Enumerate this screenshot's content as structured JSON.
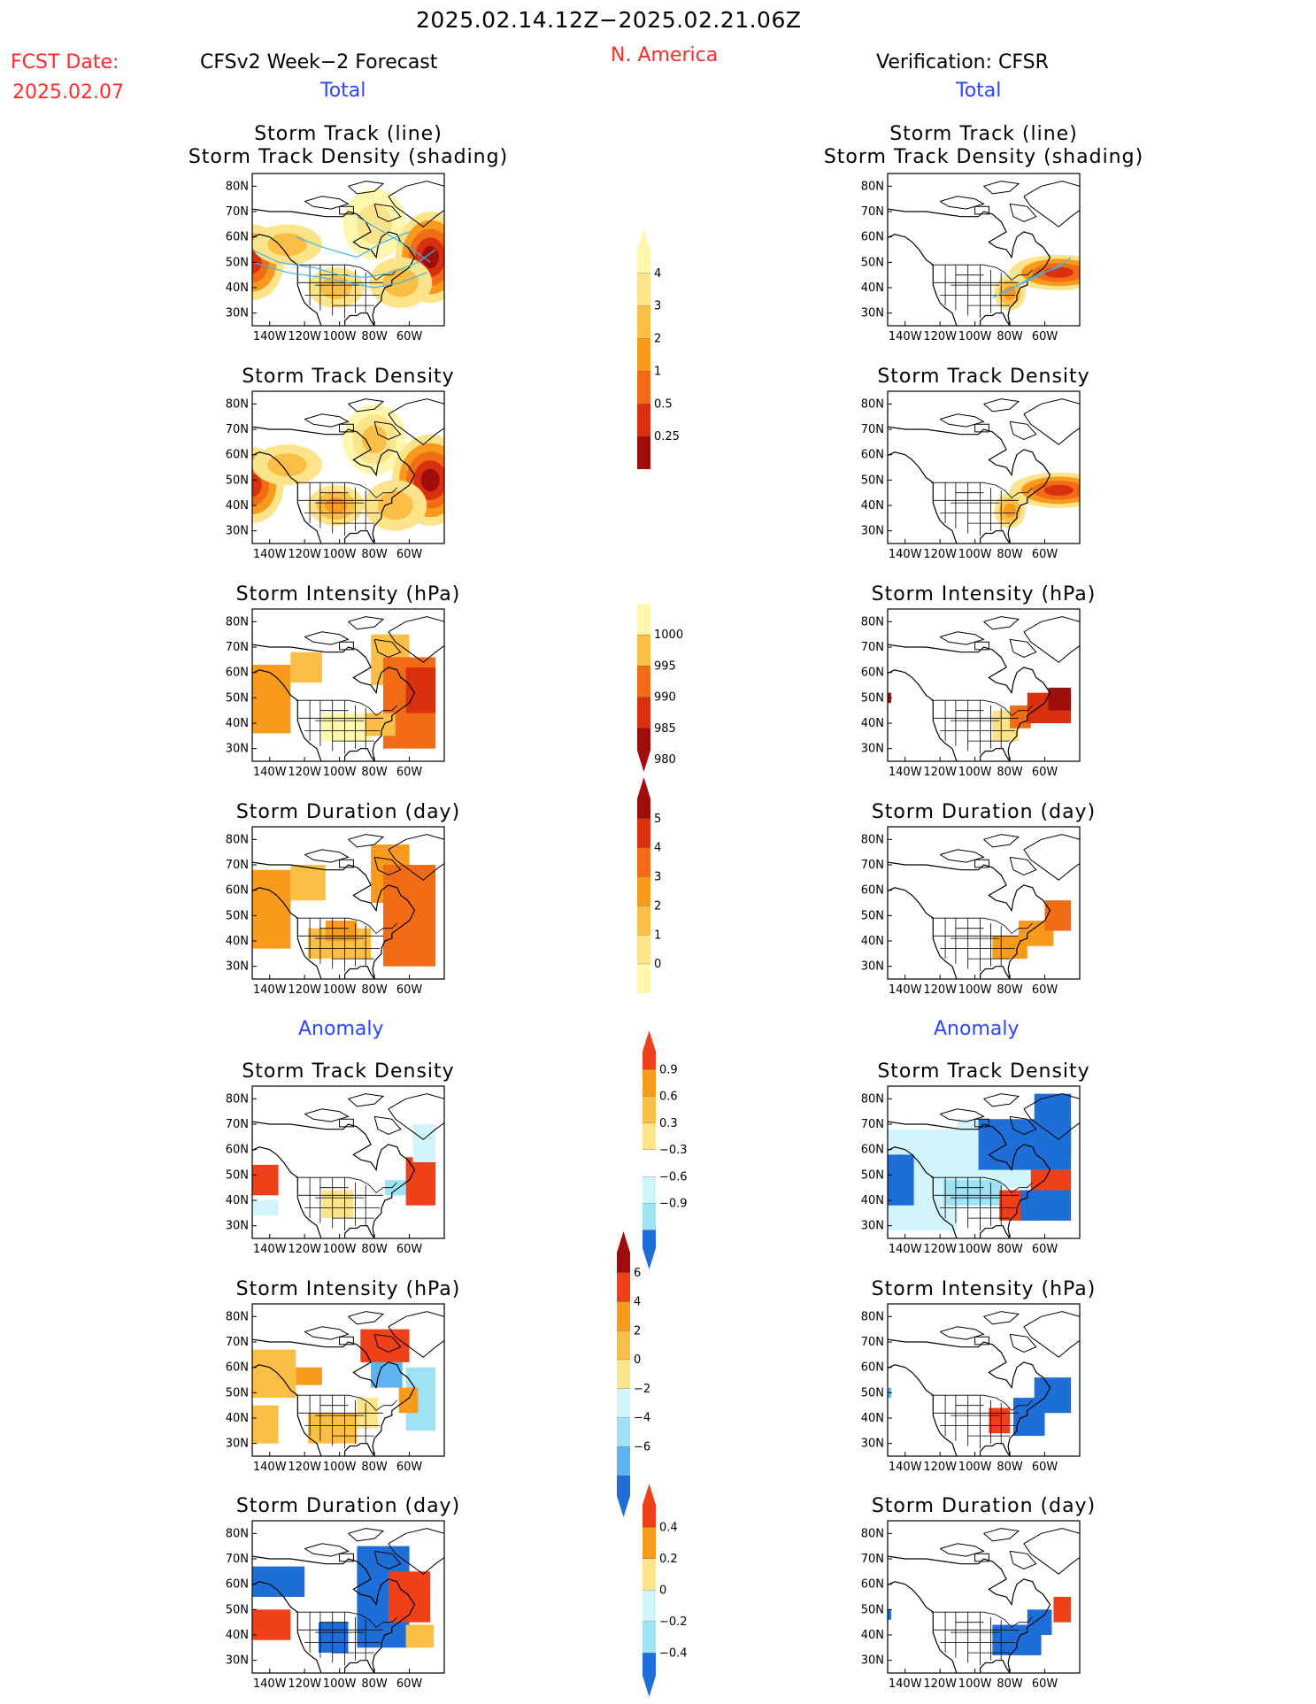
{
  "header": {
    "period": "2025.02.14.12Z−2025.02.21.06Z",
    "fcst_label": "FCST Date:",
    "fcst_date": "2025.02.07",
    "left_title": "CFSv2 Week−2 Forecast",
    "region": "N. America",
    "right_title": "Verification: CFSR",
    "total_label": "Total",
    "anomaly_label": "Anomaly"
  },
  "colors": {
    "red_text": "#ff2a2a",
    "blue_text": "#2a46ff",
    "warm_scale": [
      "#fff7b0",
      "#fde48a",
      "#fbbf45",
      "#f89a1c",
      "#f26c15",
      "#d9300f",
      "#a00d0d"
    ],
    "cool_scale": [
      "#d2f4fb",
      "#9fe2f6",
      "#5db4ee",
      "#1e6ed8"
    ],
    "anom_warm": [
      "#fde48a",
      "#fbbf45",
      "#f89a1c",
      "#f0401a"
    ]
  },
  "panels": {
    "titles": [
      "Storm Track (line)",
      "Storm Track Density (shading)",
      "Storm Track Density",
      "Storm Intensity (hPa)",
      "Storm Duration (day)"
    ]
  },
  "axes": {
    "lat_ticks": [
      "80N",
      "70N",
      "60N",
      "50N",
      "40N",
      "30N"
    ],
    "lon_ticks": [
      "140W",
      "120W",
      "100W",
      "80W",
      "60W"
    ]
  },
  "chart_data": [
    {
      "type": "heatmap",
      "title": "Storm Track Density (shading)",
      "colorbar": [
        "0.25",
        "0.5",
        "1",
        "2",
        "3",
        "4"
      ]
    },
    {
      "type": "heatmap",
      "title": "Storm Intensity (hPa)",
      "colorbar": [
        "1000",
        "995",
        "990",
        "985",
        "980"
      ]
    },
    {
      "type": "heatmap",
      "title": "Storm Duration (day)",
      "colorbar": [
        "5",
        "4",
        "3",
        "2",
        "1",
        "0"
      ]
    },
    {
      "type": "heatmap",
      "title": "Storm Track Density anomaly",
      "colorbar": [
        "0.9",
        "0.6",
        "0.3",
        "−0.3",
        "−0.6",
        "−0.9"
      ]
    },
    {
      "type": "heatmap",
      "title": "Storm Intensity anomaly (hPa)",
      "colorbar": [
        "6",
        "4",
        "2",
        "0",
        "−2",
        "−4",
        "−6"
      ]
    },
    {
      "type": "heatmap",
      "title": "Storm Duration anomaly (day)",
      "colorbar": [
        "0.4",
        "0.2",
        "0",
        "−0.2",
        "−0.4"
      ]
    }
  ]
}
